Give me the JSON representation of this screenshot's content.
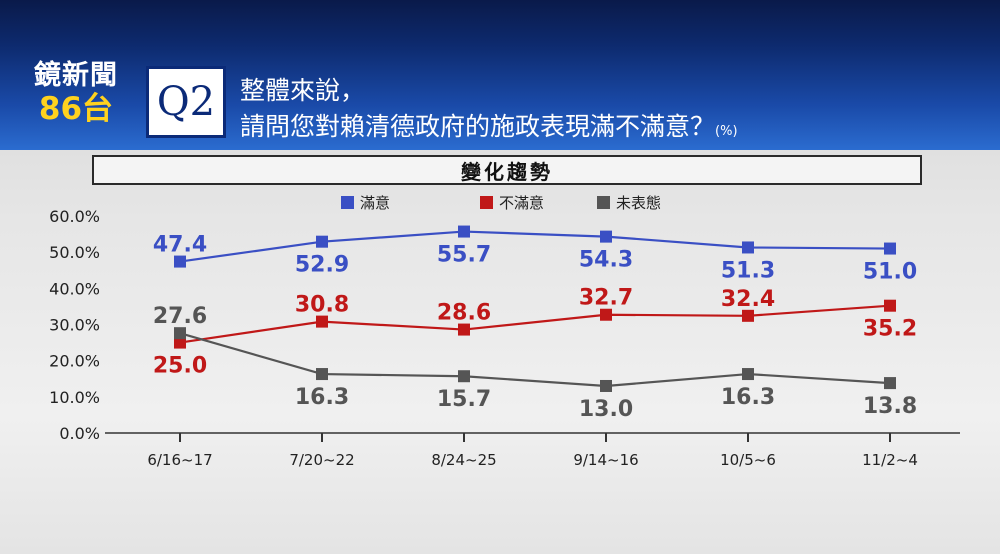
{
  "header": {
    "logo_line1": "鏡新聞",
    "logo_line2": "86台",
    "question_label": "Q2",
    "question_line1": "整體來說，",
    "question_line2": "請問您對賴清德政府的施政表現滿不滿意？",
    "question_unit": "(%)"
  },
  "section_title": "變化趨勢",
  "colors": {
    "satisfied": "#3a4fc4",
    "dissatisfied": "#c01818",
    "no_opinion": "#555555"
  },
  "chart_data": {
    "type": "line",
    "categories": [
      "6/16~17",
      "7/20~22",
      "8/24~25",
      "9/14~16",
      "10/5~6",
      "11/2~4"
    ],
    "ylim": [
      0,
      60
    ],
    "yticks": [
      "0.0%",
      "10.0%",
      "20.0%",
      "30.0%",
      "40.0%",
      "50.0%",
      "60.0%"
    ],
    "grid": false,
    "legend_position": "top-center",
    "series": [
      {
        "name": "滿意",
        "color": "#3a4fc4",
        "values": [
          47.4,
          52.9,
          55.7,
          54.3,
          51.3,
          51.0
        ],
        "labels": [
          "47.4",
          "52.9",
          "55.7",
          "54.3",
          "51.3",
          "51.0"
        ],
        "label_side": [
          "above",
          "below",
          "below",
          "below",
          "below",
          "below"
        ]
      },
      {
        "name": "不滿意",
        "color": "#c01818",
        "values": [
          25.0,
          30.8,
          28.6,
          32.7,
          32.4,
          35.2
        ],
        "labels": [
          "25.0",
          "30.8",
          "28.6",
          "32.7",
          "32.4",
          "35.2"
        ],
        "label_side": [
          "below",
          "above",
          "above",
          "above",
          "above",
          "below"
        ]
      },
      {
        "name": "未表態",
        "color": "#555555",
        "values": [
          27.6,
          16.3,
          15.7,
          13.0,
          16.3,
          13.8
        ],
        "labels": [
          "27.6",
          "16.3",
          "15.7",
          "13.0",
          "16.3",
          "13.8"
        ],
        "label_side": [
          "above",
          "below",
          "below",
          "below",
          "below",
          "below"
        ]
      }
    ]
  }
}
